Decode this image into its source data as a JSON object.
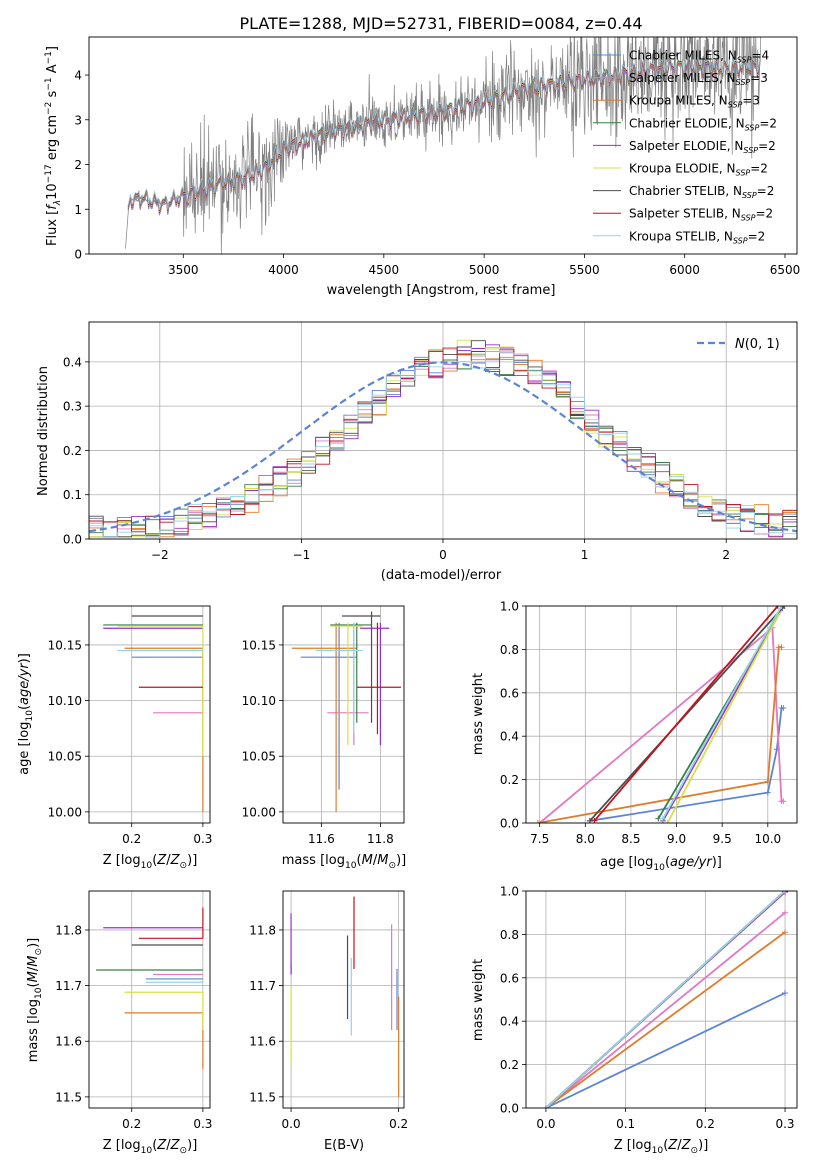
{
  "figure": {
    "title": "PLATE=1288, MJD=52731, FIBERID=0084, z=0.44"
  },
  "colors": {
    "Chabrier MILES": "#5b84d6",
    "Salpeter MILES": "#e377c2",
    "Kroupa MILES": "#e07b2a",
    "Chabrier ELODIE": "#3a7d4a",
    "Salpeter ELODIE": "#9b30c8",
    "Kroupa ELODIE": "#d4e04a",
    "Chabrier STELIB": "#4d4d4d",
    "Salpeter STELIB": "#c0141e",
    "Kroupa STELIB": "#8fd4e8",
    "data": "#808080",
    "normal": "#5b84d6"
  },
  "chart_data": [
    {
      "id": "spectrum",
      "type": "line",
      "title": "PLATE=1288, MJD=52731, FIBERID=0084, z=0.44",
      "xlabel": "wavelength [Angstrom, rest frame]",
      "ylabel": "Flux [f_λ 10^-17 erg cm^-2 s^-1 A^-1]",
      "xlim": [
        3030,
        6560
      ],
      "ylim": [
        0,
        4.85
      ],
      "xticks": [
        "3500",
        "4000",
        "4500",
        "5000",
        "5500",
        "6000",
        "6500"
      ],
      "yticks": [
        "0",
        "1",
        "2",
        "3",
        "4"
      ],
      "grid": false,
      "legend_position": "top-right",
      "legend": [
        {
          "name": "Chabrier MILES",
          "nssp": "4"
        },
        {
          "name": "Salpeter MILES",
          "nssp": "3"
        },
        {
          "name": "Kroupa MILES",
          "nssp": "3"
        },
        {
          "name": "Chabrier ELODIE",
          "nssp": "2"
        },
        {
          "name": "Salpeter ELODIE",
          "nssp": "2"
        },
        {
          "name": "Kroupa ELODIE",
          "nssp": "2"
        },
        {
          "name": "Chabrier STELIB",
          "nssp": "2"
        },
        {
          "name": "Salpeter STELIB",
          "nssp": "2"
        },
        {
          "name": "Kroupa STELIB",
          "nssp": "2"
        }
      ],
      "continuum_anchors": [
        [
          3210,
          0
        ],
        [
          3230,
          1.2
        ],
        [
          3300,
          1.25
        ],
        [
          3400,
          1.1
        ],
        [
          3500,
          1.3
        ],
        [
          3600,
          1.45
        ],
        [
          3700,
          1.6
        ],
        [
          3800,
          1.7
        ],
        [
          3900,
          1.9
        ],
        [
          4000,
          2.35
        ],
        [
          4200,
          2.7
        ],
        [
          4500,
          3.0
        ],
        [
          4800,
          3.2
        ],
        [
          5000,
          3.4
        ],
        [
          5200,
          3.7
        ],
        [
          5500,
          3.9
        ],
        [
          5800,
          4.1
        ],
        [
          6000,
          4.2
        ],
        [
          6200,
          4.15
        ],
        [
          6380,
          4.2
        ]
      ]
    },
    {
      "id": "residuals",
      "type": "histogram",
      "xlabel": "(data-model)/error",
      "ylabel": "Normed distribution",
      "xlim": [
        -2.5,
        2.5
      ],
      "ylim": [
        0,
        0.49
      ],
      "xticks": [
        "−2",
        "−1",
        "0",
        "1",
        "2"
      ],
      "yticks": [
        "0.0",
        "0.1",
        "0.2",
        "0.3",
        "0.4"
      ],
      "grid": true,
      "legend_position": "top-right",
      "legend_label": "N(0, 1)",
      "bin_width": 0.1
    },
    {
      "id": "age_vs_Z",
      "type": "errorbar",
      "xlabel": "Z [log10(Z/Z⊙)]",
      "ylabel": "age [log10(age/yr)]",
      "xlim": [
        0.14,
        0.31
      ],
      "ylim": [
        9.99,
        10.185
      ],
      "xticks": [
        "0.2",
        "0.3"
      ],
      "yticks": [
        "10.00",
        "10.05",
        "10.10",
        "10.15"
      ],
      "grid": true,
      "series": [
        {
          "name": "Chabrier MILES",
          "x": 0.3,
          "xlo": 0.2,
          "y": 10.139
        },
        {
          "name": "Salpeter MILES",
          "x": 0.3,
          "xlo": 0.23,
          "y": 10.089
        },
        {
          "name": "Kroupa MILES",
          "x": 0.3,
          "xlo": 0.19,
          "y": 10.147,
          "ylo": 10.0
        },
        {
          "name": "Chabrier ELODIE",
          "x": 0.3,
          "xlo": 0.16,
          "y": 10.168
        },
        {
          "name": "Salpeter ELODIE",
          "x": 0.3,
          "xlo": 0.16,
          "y": 10.165
        },
        {
          "name": "Kroupa ELODIE",
          "x": 0.3,
          "xlo": 0.18,
          "y": 10.167,
          "ylo": 10.05
        },
        {
          "name": "Chabrier STELIB",
          "x": 0.3,
          "xlo": 0.2,
          "y": 10.176
        },
        {
          "name": "Salpeter STELIB",
          "x": 0.3,
          "xlo": 0.21,
          "y": 10.112
        },
        {
          "name": "Kroupa STELIB",
          "x": 0.3,
          "xlo": 0.18,
          "y": 10.145
        }
      ]
    },
    {
      "id": "age_vs_mass",
      "type": "errorbar",
      "xlabel": "mass [log10(M/M⊙)]",
      "ylabel": "",
      "xlim": [
        11.47,
        11.88
      ],
      "ylim": [
        9.99,
        10.185
      ],
      "xticks": [
        "11.6",
        "11.8"
      ],
      "yticks": [
        "10.00",
        "10.05",
        "10.10",
        "10.15"
      ],
      "grid": true,
      "series": [
        {
          "name": "Chabrier MILES",
          "x": 11.66,
          "xlo": 11.53,
          "xhi": 11.72,
          "y": 10.139,
          "ylo": 10.02,
          "yhi": 10.17
        },
        {
          "name": "Salpeter MILES",
          "x": 11.71,
          "xlo": 11.62,
          "xhi": 11.76,
          "y": 10.089,
          "ylo": 10.06,
          "yhi": 10.17
        },
        {
          "name": "Kroupa MILES",
          "x": 11.65,
          "xlo": 11.5,
          "xhi": 11.72,
          "y": 10.147,
          "ylo": 10.0,
          "yhi": 10.17
        },
        {
          "name": "Chabrier ELODIE",
          "x": 11.72,
          "xlo": 11.63,
          "xhi": 11.77,
          "y": 10.168,
          "ylo": 10.08,
          "yhi": 10.17
        },
        {
          "name": "Salpeter ELODIE",
          "x": 11.8,
          "xlo": 11.73,
          "xhi": 11.83,
          "y": 10.165,
          "ylo": 10.06,
          "yhi": 10.17
        },
        {
          "name": "Kroupa ELODIE",
          "x": 11.69,
          "xlo": 11.63,
          "xhi": 11.74,
          "y": 10.167,
          "ylo": 10.06,
          "yhi": 10.17
        },
        {
          "name": "Chabrier STELIB",
          "x": 11.77,
          "xlo": 11.67,
          "xhi": 11.8,
          "y": 10.176,
          "ylo": 10.08,
          "yhi": 10.18
        },
        {
          "name": "Salpeter STELIB",
          "x": 11.79,
          "xlo": 11.72,
          "xhi": 11.87,
          "y": 10.112,
          "ylo": 10.07,
          "yhi": 10.17
        },
        {
          "name": "Kroupa STELIB",
          "x": 11.71,
          "xlo": 11.58,
          "xhi": 11.74,
          "y": 10.145,
          "ylo": 10.07,
          "yhi": 10.17
        }
      ]
    },
    {
      "id": "cumulative_age",
      "type": "line",
      "xlabel": "age [log10(age/yr)]",
      "ylabel": "mass weight",
      "xlim": [
        7.35,
        10.32
      ],
      "ylim": [
        0,
        1.0
      ],
      "xticks": [
        "7.5",
        "8.0",
        "8.5",
        "9.0",
        "9.5",
        "10.0"
      ],
      "yticks": [
        "0.0",
        "0.2",
        "0.4",
        "0.6",
        "0.8",
        "1.0"
      ],
      "grid": true,
      "series": [
        {
          "name": "Chabrier MILES",
          "x": [
            8.05,
            10.0,
            10.1,
            10.15,
            10.17
          ],
          "y": [
            0.01,
            0.14,
            0.34,
            0.53,
            0.53
          ]
        },
        {
          "name": "Salpeter MILES",
          "x": [
            7.5,
            10.05,
            10.15,
            10.17
          ],
          "y": [
            0.0,
            0.9,
            0.1,
            0.1
          ]
        },
        {
          "name": "Kroupa MILES",
          "x": [
            7.48,
            10.0,
            10.12,
            10.15
          ],
          "y": [
            0.0,
            0.19,
            0.81,
            0.81
          ]
        },
        {
          "name": "Chabrier ELODIE",
          "x": [
            8.8,
            10.17
          ],
          "y": [
            0.02,
            1.0
          ]
        },
        {
          "name": "Salpeter ELODIE",
          "x": [
            8.85,
            10.16
          ],
          "y": [
            0.01,
            0.99
          ]
        },
        {
          "name": "Kroupa ELODIE",
          "x": [
            8.9,
            10.17
          ],
          "y": [
            0.0,
            1.0
          ]
        },
        {
          "name": "Chabrier STELIB",
          "x": [
            8.05,
            10.18
          ],
          "y": [
            0.01,
            1.0
          ]
        },
        {
          "name": "Salpeter STELIB",
          "x": [
            8.1,
            10.11
          ],
          "y": [
            0.01,
            1.0
          ]
        },
        {
          "name": "Kroupa STELIB",
          "x": [
            8.85,
            10.15
          ],
          "y": [
            0.02,
            1.0
          ]
        }
      ]
    },
    {
      "id": "mass_vs_Z",
      "type": "errorbar",
      "xlabel": "Z [log10(Z/Z⊙)]",
      "ylabel": "mass [log10(M/M⊙)]",
      "xlim": [
        0.14,
        0.31
      ],
      "ylim": [
        11.48,
        11.87
      ],
      "xticks": [
        "0.2",
        "0.3"
      ],
      "yticks": [
        "11.5",
        "11.6",
        "11.7",
        "11.8"
      ],
      "grid": true,
      "series": [
        {
          "name": "Chabrier MILES",
          "x": 0.3,
          "xlo": 0.22,
          "y": 11.712
        },
        {
          "name": "Salpeter MILES",
          "x": 0.3,
          "xlo": 0.23,
          "y": 11.72
        },
        {
          "name": "Kroupa MILES",
          "x": 0.3,
          "xlo": 0.19,
          "y": 11.651,
          "ylo": 11.55
        },
        {
          "name": "Chabrier ELODIE",
          "x": 0.3,
          "xlo": 0.15,
          "y": 11.728
        },
        {
          "name": "Salpeter ELODIE",
          "x": 0.3,
          "xlo": 0.16,
          "y": 11.804
        },
        {
          "name": "Kroupa ELODIE",
          "x": 0.3,
          "xlo": 0.19,
          "y": 11.688,
          "ylo": 11.62
        },
        {
          "name": "Chabrier STELIB",
          "x": 0.3,
          "xlo": 0.2,
          "y": 11.773
        },
        {
          "name": "Salpeter STELIB",
          "x": 0.3,
          "xlo": 0.21,
          "y": 11.785,
          "yhi": 11.84
        },
        {
          "name": "Kroupa STELIB",
          "x": 0.3,
          "xlo": 0.22,
          "y": 11.706
        }
      ]
    },
    {
      "id": "mass_vs_ebv",
      "type": "errorbar",
      "xlabel": "E(B-V)",
      "ylabel": "",
      "xlim": [
        -0.015,
        0.21
      ],
      "ylim": [
        11.48,
        11.87
      ],
      "xticks": [
        "0.0",
        "0.2"
      ],
      "yticks": [
        "11.5",
        "11.6",
        "11.7",
        "11.8"
      ],
      "grid": true,
      "series": [
        {
          "name": "Chabrier MILES",
          "x": 0.197,
          "y": 11.712,
          "ylo": 11.62,
          "yhi": 11.73
        },
        {
          "name": "Salpeter MILES",
          "x": 0.187,
          "y": 11.72,
          "ylo": 11.62,
          "yhi": 11.81
        },
        {
          "name": "Kroupa MILES",
          "x": 0.2,
          "y": 11.651,
          "ylo": 11.5,
          "yhi": 11.68
        },
        {
          "name": "Chabrier ELODIE",
          "x": 0.0,
          "y": 11.728,
          "ylo": 11.72,
          "yhi": 11.74
        },
        {
          "name": "Salpeter ELODIE",
          "x": 0.0,
          "y": 11.804,
          "ylo": 11.72,
          "yhi": 11.83
        },
        {
          "name": "Kroupa ELODIE",
          "x": 0.0,
          "y": 11.688,
          "ylo": 11.56,
          "yhi": 11.7
        },
        {
          "name": "Chabrier STELIB",
          "x": 0.105,
          "y": 11.773,
          "ylo": 11.64,
          "yhi": 11.79
        },
        {
          "name": "Salpeter STELIB",
          "x": 0.117,
          "y": 11.785,
          "ylo": 11.73,
          "yhi": 11.86
        },
        {
          "name": "Kroupa STELIB",
          "x": 0.112,
          "y": 11.706,
          "ylo": 11.61,
          "yhi": 11.75
        }
      ]
    },
    {
      "id": "cumulative_Z",
      "type": "line",
      "xlabel": "Z [log10(Z/Z⊙)]",
      "ylabel": "mass weight",
      "xlim": [
        -0.025,
        0.315
      ],
      "ylim": [
        0,
        1.0
      ],
      "xticks": [
        "0.0",
        "0.1",
        "0.2",
        "0.3"
      ],
      "yticks": [
        "0.0",
        "0.2",
        "0.4",
        "0.6",
        "0.8",
        "1.0"
      ],
      "grid": true,
      "series": [
        {
          "name": "Chabrier MILES",
          "x": [
            0.0,
            0.3
          ],
          "y": [
            0.0,
            0.53
          ]
        },
        {
          "name": "Salpeter MILES",
          "x": [
            0.0,
            0.3
          ],
          "y": [
            0.0,
            0.9
          ]
        },
        {
          "name": "Kroupa MILES",
          "x": [
            0.0,
            0.3
          ],
          "y": [
            0.0,
            0.81
          ]
        },
        {
          "name": "Chabrier ELODIE",
          "x": [
            0.0,
            0.3
          ],
          "y": [
            0.0,
            1.0
          ]
        },
        {
          "name": "Salpeter ELODIE",
          "x": [
            0.0,
            0.3
          ],
          "y": [
            0.0,
            0.995
          ]
        },
        {
          "name": "Kroupa ELODIE",
          "x": [
            0.0,
            0.3
          ],
          "y": [
            0.0,
            1.0
          ]
        },
        {
          "name": "Chabrier STELIB",
          "x": [
            0.0,
            0.3
          ],
          "y": [
            0.0,
            1.0
          ]
        },
        {
          "name": "Salpeter STELIB",
          "x": [
            0.0,
            0.3
          ],
          "y": [
            0.0,
            0.998
          ]
        },
        {
          "name": "Kroupa STELIB",
          "x": [
            0.0,
            0.3
          ],
          "y": [
            0.0,
            1.0
          ]
        }
      ]
    }
  ]
}
